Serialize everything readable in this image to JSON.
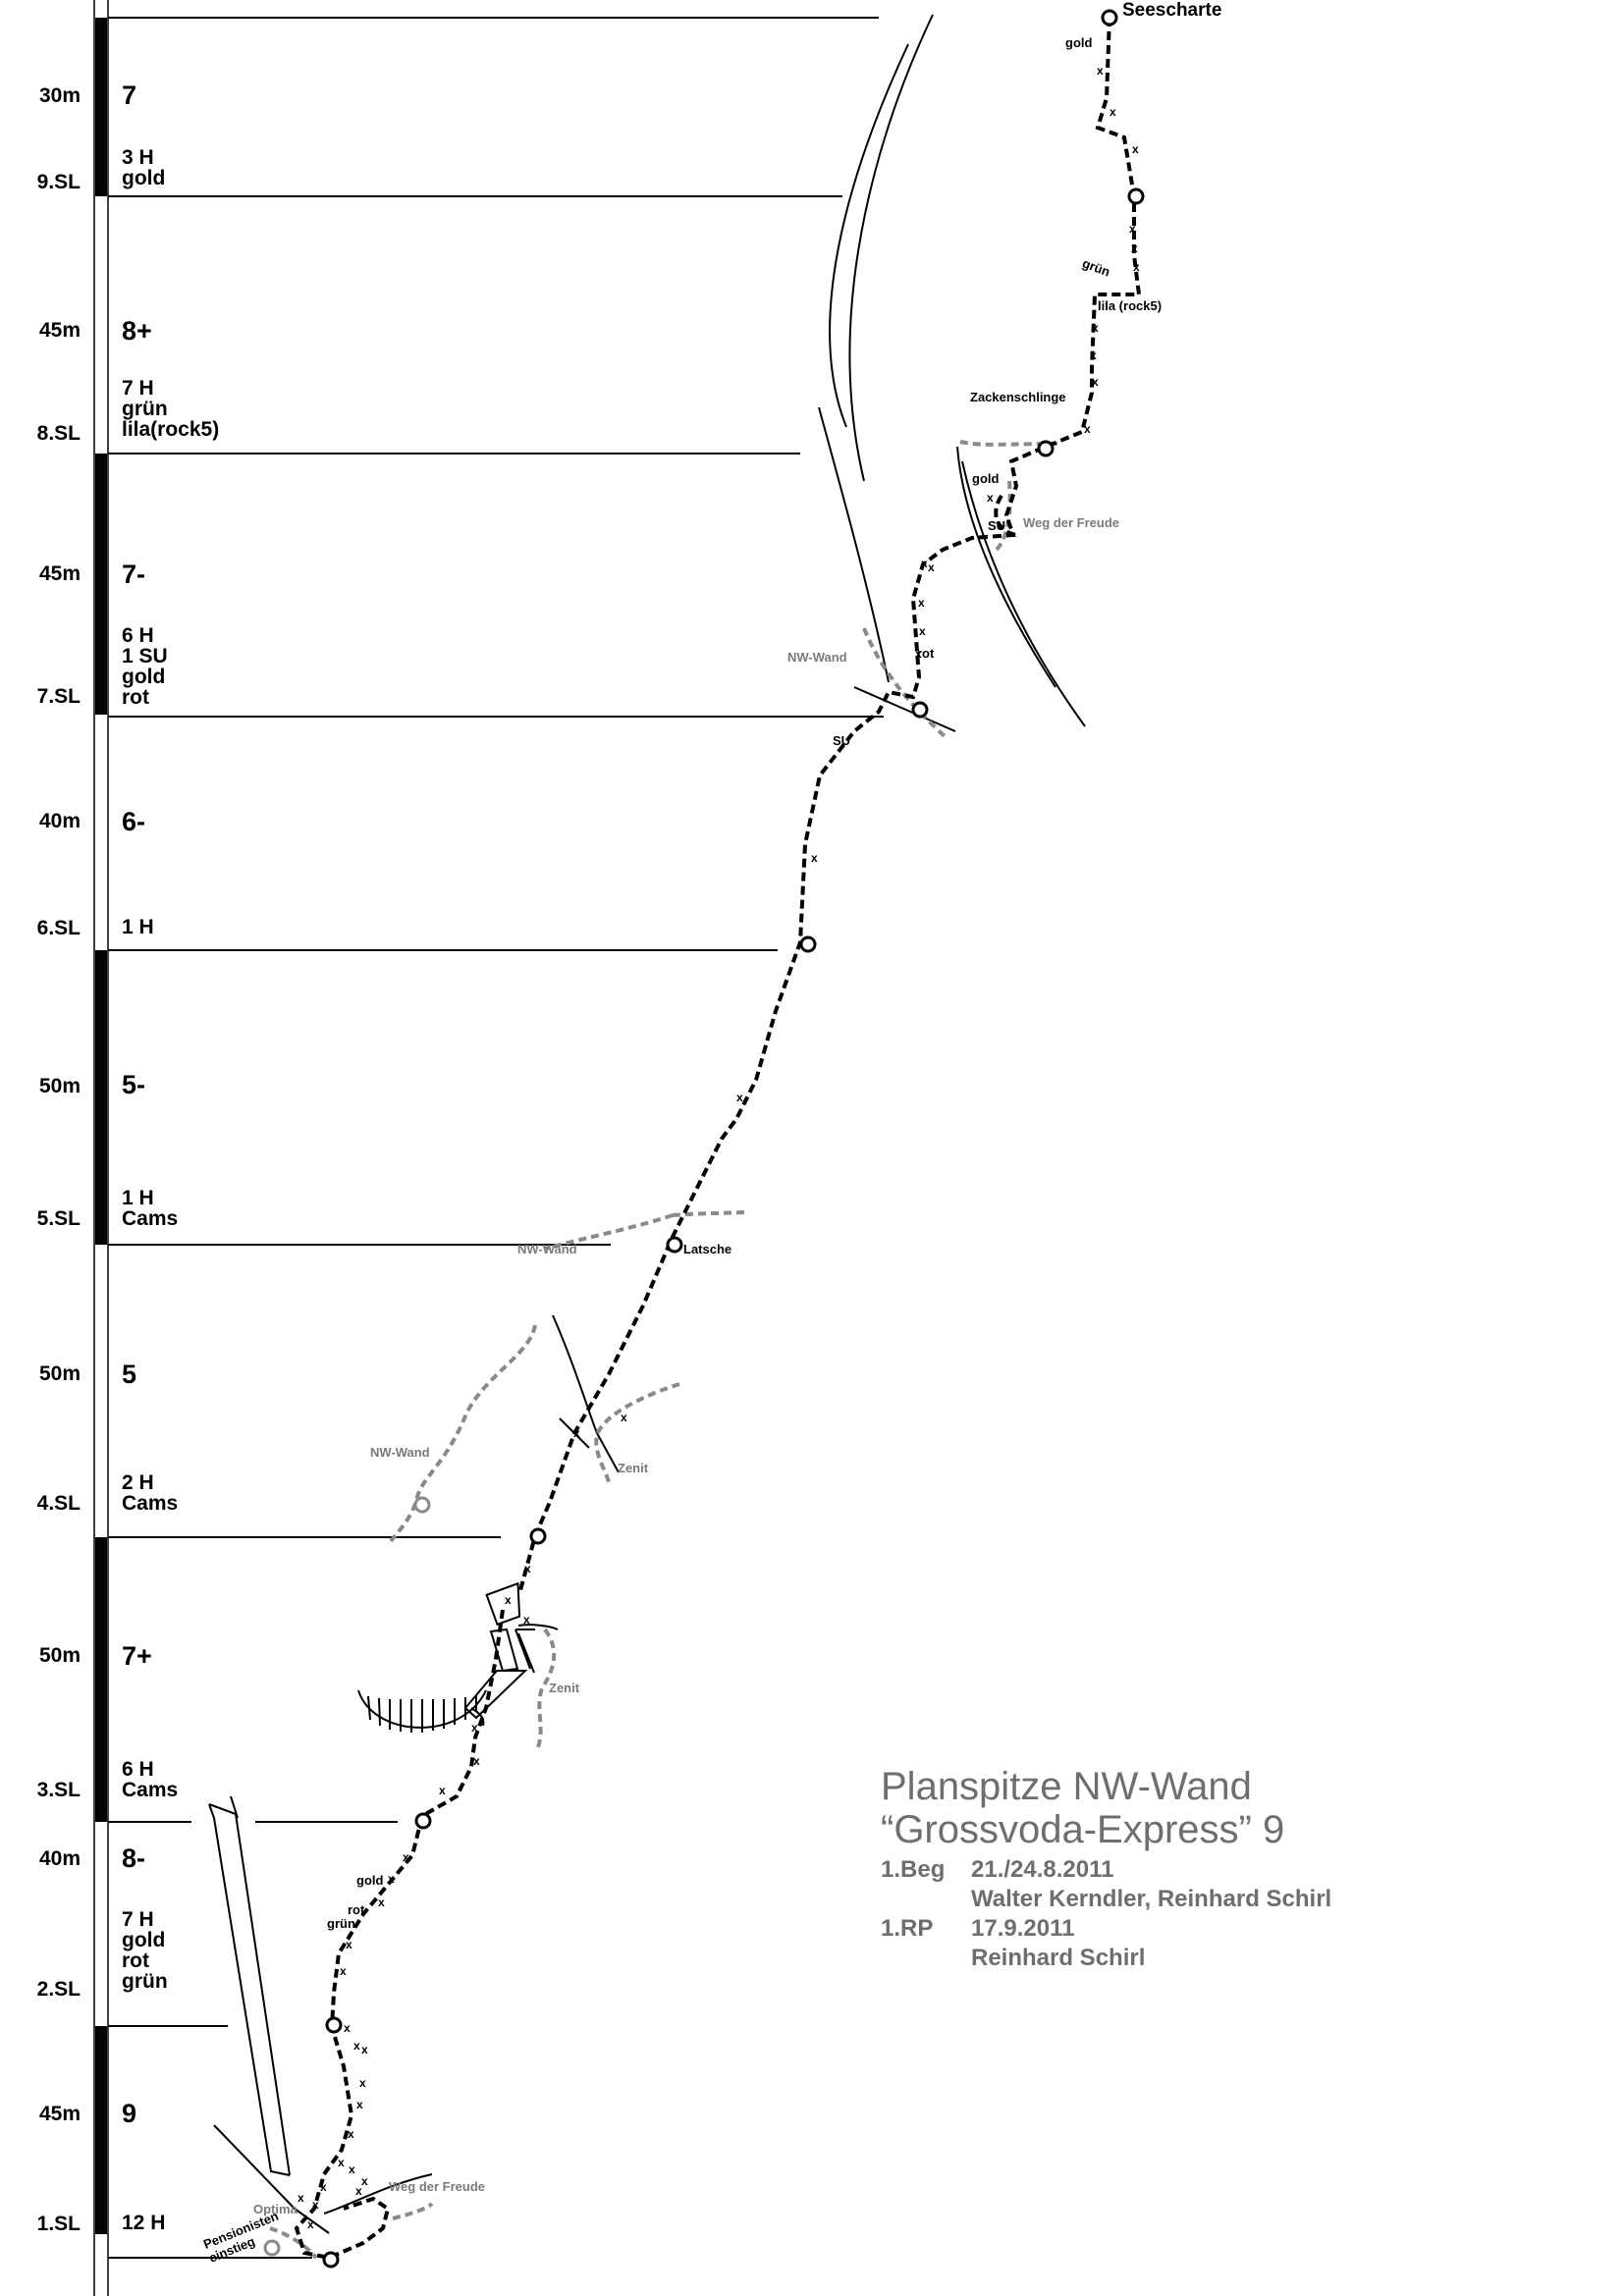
{
  "pitches": [
    {
      "sl": "",
      "length": "30m",
      "grade": "7",
      "gear": "3 H\ngold"
    },
    {
      "sl": "9.SL",
      "length": "45m",
      "grade": "8+",
      "gear": "7 H\ngrün\nlila(rock5)"
    },
    {
      "sl": "8.SL",
      "length": "45m",
      "grade": "7-",
      "gear": "6 H\n1 SU\ngold\nrot"
    },
    {
      "sl": "7.SL",
      "length": "40m",
      "grade": "6-",
      "gear": "1 H"
    },
    {
      "sl": "6.SL",
      "length": "50m",
      "grade": "5-",
      "gear": "1 H\nCams"
    },
    {
      "sl": "5.SL",
      "length": "50m",
      "grade": "5",
      "gear": "2 H\nCams"
    },
    {
      "sl": "4.SL",
      "length": "50m",
      "grade": "7+",
      "gear": "6 H\nCams"
    },
    {
      "sl": "3.SL",
      "length": "40m",
      "grade": "8-",
      "gear": "7 H\ngold\nrot\ngrün"
    },
    {
      "sl": "2.SL",
      "length": "45m",
      "grade": "9",
      "gear": "12 H"
    },
    {
      "sl": "1.SL",
      "length": "",
      "grade": "",
      "gear": ""
    }
  ],
  "labels": {
    "seescharte": "Seescharte",
    "gold_top": "gold",
    "gruen_9": "grün",
    "lila_9": "lila (rock5)",
    "zackenschlinge": "Zackenschlinge",
    "gold_8": "gold",
    "su_8": "SU",
    "weg_freude_top": "Weg der Freude",
    "rot_8": "rot",
    "nw_wand_7": "NW-Wand",
    "su_7": "SU",
    "nw_wand_5": "NW-Wand",
    "latsche": "Latsche",
    "nw_wand_4": "NW-Wand",
    "zenit_4": "Zenit",
    "zenit_3": "Zenit",
    "gold_2": "gold",
    "rot_2": "rot",
    "gruen_2": "grün",
    "optima": "Optima",
    "weg_freude_bottom": "Weg der Freude",
    "einstieg": "Pensionisten\neinstieg"
  },
  "title": {
    "line1": "Planspitze NW-Wand",
    "line2": "“Grossvoda-Express”  9",
    "first_ascent_key": "1.Beg",
    "first_ascent_date": "21./24.8.2011",
    "first_ascent_names": "Walter Kerndler, Reinhard Schirl",
    "redpoint_key": "1.RP",
    "redpoint_date": "17.9.2011",
    "redpoint_name": "Reinhard Schirl"
  },
  "colors": {
    "route": "#000000",
    "neighbour_route": "#8a8a8a",
    "title": "#6e6e6e"
  }
}
